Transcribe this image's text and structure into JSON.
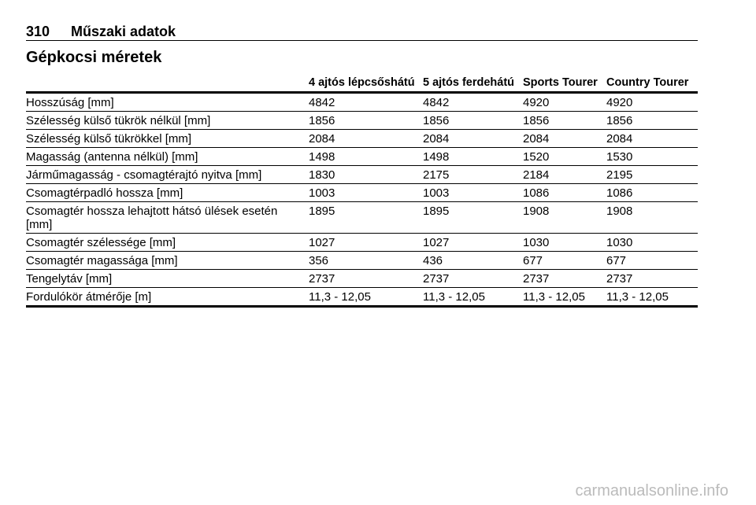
{
  "header": {
    "page_number": "310",
    "section": "Műszaki adatok"
  },
  "title": "Gépkocsi méretek",
  "table": {
    "columns": [
      "4 ajtós lépcsőshátú",
      "5 ajtós ferdehátú",
      "Sports Tourer",
      "Country Tourer"
    ],
    "rows": [
      [
        "Hosszúság [mm]",
        4842,
        4842,
        4920,
        4920
      ],
      [
        "Szélesség külső tükrök nélkül [mm]",
        1856,
        1856,
        1856,
        1856
      ],
      [
        "Szélesség külső tükrökkel [mm]",
        2084,
        2084,
        2084,
        2084
      ],
      [
        "Magasság (antenna nélkül) [mm]",
        1498,
        1498,
        1520,
        1530
      ],
      [
        "Járműmagasság - csomagtérajtó nyitva [mm]",
        1830,
        2175,
        2184,
        2195
      ],
      [
        "Csomagtérpadló hossza [mm]",
        1003,
        1003,
        1086,
        1086
      ],
      [
        "Csomagtér hossza lehajtott hátsó ülések esetén [mm]",
        1895,
        1895,
        1908,
        1908
      ],
      [
        "Csomagtér szélessége [mm]",
        1027,
        1027,
        1030,
        1030
      ],
      [
        "Csomagtér magassága [mm]",
        356,
        436,
        677,
        677
      ],
      [
        "Tengelytáv [mm]",
        2737,
        2737,
        2737,
        2737
      ],
      [
        "Fordulókör átmérője [m]",
        "11,3 - 12,05",
        "11,3 - 12,05",
        "11,3 - 12,05",
        "11,3 - 12,05"
      ]
    ]
  },
  "watermark": "carmanualsonline.info"
}
